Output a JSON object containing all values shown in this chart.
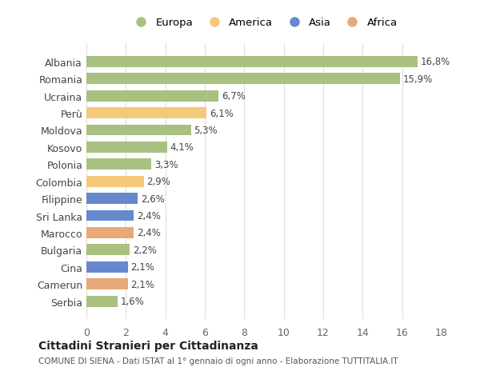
{
  "countries": [
    "Albania",
    "Romania",
    "Ucraina",
    "Perù",
    "Moldova",
    "Kosovo",
    "Polonia",
    "Colombia",
    "Filippine",
    "Sri Lanka",
    "Marocco",
    "Bulgaria",
    "Cina",
    "Camerun",
    "Serbia"
  ],
  "values": [
    16.8,
    15.9,
    6.7,
    6.1,
    5.3,
    4.1,
    3.3,
    2.9,
    2.6,
    2.4,
    2.4,
    2.2,
    2.1,
    2.1,
    1.6
  ],
  "labels": [
    "16,8%",
    "15,9%",
    "6,7%",
    "6,1%",
    "5,3%",
    "4,1%",
    "3,3%",
    "2,9%",
    "2,6%",
    "2,4%",
    "2,4%",
    "2,2%",
    "2,1%",
    "2,1%",
    "1,6%"
  ],
  "continents": [
    "Europa",
    "Europa",
    "Europa",
    "America",
    "Europa",
    "Europa",
    "Europa",
    "America",
    "Asia",
    "Asia",
    "Africa",
    "Europa",
    "Asia",
    "Africa",
    "Europa"
  ],
  "colors": {
    "Europa": "#a8c080",
    "America": "#f5c97a",
    "Asia": "#6688cc",
    "Africa": "#e8a878"
  },
  "legend_order": [
    "Europa",
    "America",
    "Asia",
    "Africa"
  ],
  "title1": "Cittadini Stranieri per Cittadinanza",
  "title2": "COMUNE DI SIENA - Dati ISTAT al 1° gennaio di ogni anno - Elaborazione TUTTITALIA.IT",
  "xlim": [
    0,
    18
  ],
  "xticks": [
    0,
    2,
    4,
    6,
    8,
    10,
    12,
    14,
    16,
    18
  ],
  "background_color": "#ffffff",
  "grid_color": "#dddddd"
}
